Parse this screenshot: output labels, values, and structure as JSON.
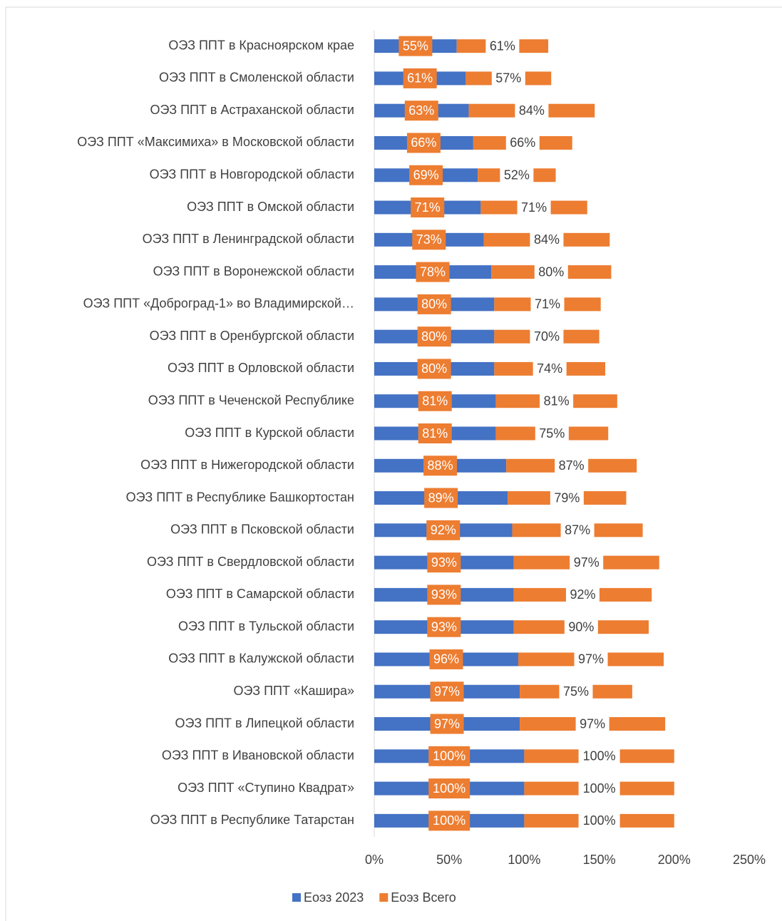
{
  "chart_data": {
    "type": "stacked_barh",
    "categories": [
      "ОЭЗ ППТ в Красноярском крае",
      "ОЭЗ ППТ в Смоленской области",
      "ОЭЗ ППТ в Астраханской области",
      "ОЭЗ ППТ «Максимиха» в Московской области",
      "ОЭЗ ППТ в Новгородской области",
      "ОЭЗ ППТ в Омской области",
      "ОЭЗ ППТ в Ленинградской области",
      "ОЭЗ ППТ в Воронежской области",
      "ОЭЗ ППТ «Доброград-1» во Владимирской…",
      "ОЭЗ ППТ в Оренбургской области",
      "ОЭЗ ППТ в Орловской области",
      "ОЭЗ ППТ в Чеченской Республике",
      "ОЭЗ ППТ в Курской области",
      "ОЭЗ ППТ в Нижегородской области",
      "ОЭЗ ППТ в Республике Башкортостан",
      "ОЭЗ ППТ в Псковской области",
      "ОЭЗ ППТ в Свердловской области",
      "ОЭЗ ППТ в Самарской области",
      "ОЭЗ ППТ в Тульской области",
      "ОЭЗ ППТ в Калужской области",
      "ОЭЗ ППТ «Кашира»",
      "ОЭЗ ППТ в Липецкой области",
      "ОЭЗ ППТ в Ивановской области",
      "ОЭЗ ППТ «Ступино Квадрат»",
      "ОЭЗ ППТ в Республике Татарстан"
    ],
    "series": [
      {
        "name": "Еоэз 2023",
        "color": "#4472c4",
        "values": [
          55,
          61,
          63,
          66,
          69,
          71,
          73,
          78,
          80,
          80,
          80,
          81,
          81,
          88,
          89,
          92,
          93,
          93,
          93,
          96,
          97,
          97,
          100,
          100,
          100
        ],
        "value_labels": [
          "55%",
          "61%",
          "63%",
          "66%",
          "69%",
          "71%",
          "73%",
          "78%",
          "80%",
          "80%",
          "80%",
          "81%",
          "81%",
          "88%",
          "89%",
          "92%",
          "93%",
          "93%",
          "93%",
          "96%",
          "97%",
          "97%",
          "100%",
          "100%",
          "100%"
        ]
      },
      {
        "name": "Еоэз Всего",
        "color": "#ed7d31",
        "values": [
          61,
          57,
          84,
          66,
          52,
          71,
          84,
          80,
          71,
          70,
          74,
          81,
          75,
          87,
          79,
          87,
          97,
          92,
          90,
          97,
          75,
          97,
          100,
          100,
          100
        ],
        "value_labels": [
          "61%",
          "57%",
          "84%",
          "66%",
          "52%",
          "71%",
          "84%",
          "80%",
          "71%",
          "70%",
          "74%",
          "81%",
          "75%",
          "87%",
          "79%",
          "87%",
          "97%",
          "92%",
          "90%",
          "97%",
          "75%",
          "97%",
          "100%",
          "100%",
          "100%"
        ]
      }
    ],
    "xlim": [
      0,
      250
    ],
    "xticks": [
      {
        "value": 0,
        "label": "0%"
      },
      {
        "value": 50,
        "label": "50%"
      },
      {
        "value": 100,
        "label": "100%"
      },
      {
        "value": 150,
        "label": "150%"
      },
      {
        "value": 200,
        "label": "200%"
      },
      {
        "value": 250,
        "label": "250%"
      }
    ],
    "legend": "bottom"
  }
}
